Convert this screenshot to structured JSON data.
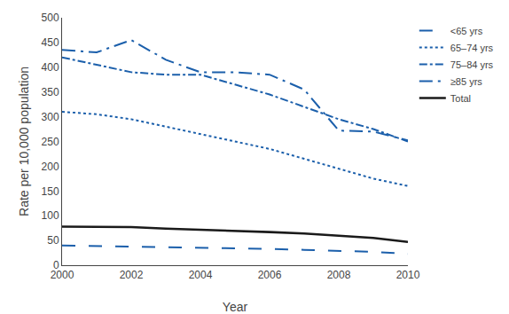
{
  "chart_data": {
    "type": "line",
    "xlabel": "Year",
    "ylabel": "Rate per 10,000 population",
    "x": [
      2000,
      2001,
      2002,
      2003,
      2004,
      2005,
      2006,
      2007,
      2008,
      2009,
      2010
    ],
    "series": [
      {
        "name": "<65 yrs",
        "color": "#1B5FAB",
        "line_style": "longdash",
        "values": [
          40,
          39,
          38,
          37,
          36,
          35,
          33,
          31,
          29,
          27,
          23
        ]
      },
      {
        "name": "65–74 yrs",
        "color": "#1B5FAB",
        "line_style": "dot",
        "values": [
          310,
          305,
          295,
          280,
          265,
          250,
          235,
          215,
          195,
          175,
          160
        ]
      },
      {
        "name": "75–84 yrs",
        "color": "#1B5FAB",
        "line_style": "dashdot",
        "values": [
          420,
          405,
          390,
          385,
          385,
          365,
          345,
          320,
          295,
          275,
          250
        ]
      },
      {
        "name": "≥85 yrs",
        "color": "#1B5FAB",
        "line_style": "longdashdot",
        "values": [
          435,
          430,
          455,
          415,
          390,
          390,
          385,
          355,
          272,
          270,
          252
        ]
      },
      {
        "name": "Total",
        "color": "#1a1a1a",
        "line_style": "solid",
        "values": [
          78,
          77,
          77,
          74,
          72,
          70,
          67,
          64,
          60,
          55,
          47
        ]
      }
    ],
    "xlim": [
      2000,
      2010
    ],
    "xticks": [
      2000,
      2002,
      2004,
      2006,
      2008,
      2010
    ],
    "ylim": [
      0,
      500
    ],
    "yticks": [
      0,
      50,
      100,
      150,
      200,
      250,
      300,
      350,
      400,
      450,
      500
    ],
    "grid": false,
    "legend": "upper right"
  }
}
